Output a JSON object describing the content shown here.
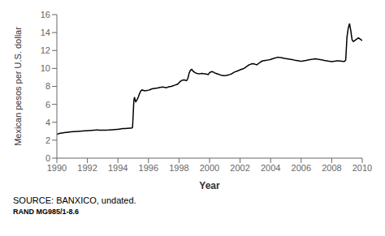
{
  "chart_data": {
    "type": "line",
    "xlabel": "Year",
    "ylabel": "Mexican pesos per U.S. dollar",
    "annotations": [
      "SOURCE: BANXICO, undated.",
      "RAND MG985/1-8.6"
    ],
    "color": "#000000",
    "grid": false,
    "xlim": [
      1990,
      2010
    ],
    "ylim": [
      0,
      16
    ],
    "yticks": [
      0,
      2,
      4,
      6,
      8,
      10,
      12,
      14,
      16
    ],
    "xticks": [
      1990,
      1992,
      1994,
      1996,
      1998,
      2000,
      2002,
      2004,
      2006,
      2008,
      2010
    ],
    "x": [
      1990.0,
      1990.083,
      1990.167,
      1990.25,
      1990.333,
      1990.417,
      1990.5,
      1990.583,
      1990.667,
      1990.75,
      1990.833,
      1990.917,
      1991.0,
      1991.083,
      1991.167,
      1991.25,
      1991.333,
      1991.417,
      1991.5,
      1991.583,
      1991.667,
      1991.75,
      1991.833,
      1991.917,
      1992.0,
      1992.083,
      1992.167,
      1992.25,
      1992.333,
      1992.417,
      1992.5,
      1992.583,
      1992.667,
      1992.75,
      1992.833,
      1992.917,
      1993.0,
      1993.083,
      1993.167,
      1993.25,
      1993.333,
      1993.417,
      1993.5,
      1993.583,
      1993.667,
      1993.75,
      1993.833,
      1993.917,
      1994.0,
      1994.083,
      1994.167,
      1994.25,
      1994.333,
      1994.417,
      1994.5,
      1994.583,
      1994.667,
      1994.75,
      1994.833,
      1994.917,
      1994.958,
      1995.0,
      1995.042,
      1995.083,
      1995.125,
      1995.167,
      1995.25,
      1995.333,
      1995.417,
      1995.5,
      1995.583,
      1995.667,
      1995.75,
      1995.833,
      1995.917,
      1996.0,
      1996.083,
      1996.167,
      1996.25,
      1996.333,
      1996.417,
      1996.5,
      1996.583,
      1996.667,
      1996.75,
      1996.833,
      1996.917,
      1997.0,
      1997.083,
      1997.167,
      1997.25,
      1997.333,
      1997.417,
      1997.5,
      1997.583,
      1997.667,
      1997.75,
      1997.833,
      1997.917,
      1998.0,
      1998.083,
      1998.167,
      1998.25,
      1998.333,
      1998.417,
      1998.5,
      1998.583,
      1998.667,
      1998.75,
      1998.833,
      1998.917,
      1999.0,
      1999.083,
      1999.167,
      1999.25,
      1999.333,
      1999.417,
      1999.5,
      1999.583,
      1999.667,
      1999.75,
      1999.833,
      1999.917,
      2000.0,
      2000.083,
      2000.167,
      2000.25,
      2000.333,
      2000.417,
      2000.5,
      2000.583,
      2000.667,
      2000.75,
      2000.833,
      2000.917,
      2001.0,
      2001.083,
      2001.167,
      2001.25,
      2001.333,
      2001.417,
      2001.5,
      2001.583,
      2001.667,
      2001.75,
      2001.833,
      2001.917,
      2002.0,
      2002.083,
      2002.167,
      2002.25,
      2002.333,
      2002.417,
      2002.5,
      2002.583,
      2002.667,
      2002.75,
      2002.833,
      2002.917,
      2003.0,
      2003.083,
      2003.167,
      2003.25,
      2003.333,
      2003.417,
      2003.5,
      2003.583,
      2003.667,
      2003.75,
      2003.833,
      2003.917,
      2004.0,
      2004.083,
      2004.167,
      2004.25,
      2004.333,
      2004.417,
      2004.5,
      2004.583,
      2004.667,
      2004.75,
      2004.833,
      2004.917,
      2005.0,
      2005.083,
      2005.167,
      2005.25,
      2005.333,
      2005.417,
      2005.5,
      2005.583,
      2005.667,
      2005.75,
      2005.833,
      2005.917,
      2006.0,
      2006.083,
      2006.167,
      2006.25,
      2006.333,
      2006.417,
      2006.5,
      2006.583,
      2006.667,
      2006.75,
      2006.833,
      2006.917,
      2007.0,
      2007.083,
      2007.167,
      2007.25,
      2007.333,
      2007.417,
      2007.5,
      2007.583,
      2007.667,
      2007.75,
      2007.833,
      2007.917,
      2008.0,
      2008.083,
      2008.167,
      2008.25,
      2008.333,
      2008.417,
      2008.5,
      2008.583,
      2008.667,
      2008.75,
      2008.833,
      2008.917,
      2009.0,
      2009.083,
      2009.167,
      2009.25,
      2009.333,
      2009.417,
      2009.5,
      2009.583,
      2009.667,
      2009.75,
      2009.833,
      2009.917,
      2010.0
    ],
    "values": [
      2.65,
      2.7,
      2.75,
      2.78,
      2.8,
      2.82,
      2.84,
      2.86,
      2.88,
      2.9,
      2.92,
      2.93,
      2.94,
      2.95,
      2.96,
      2.97,
      2.98,
      2.99,
      3.0,
      3.01,
      3.02,
      3.03,
      3.04,
      3.05,
      3.06,
      3.07,
      3.08,
      3.09,
      3.1,
      3.11,
      3.12,
      3.13,
      3.13,
      3.12,
      3.12,
      3.11,
      3.11,
      3.11,
      3.12,
      3.12,
      3.13,
      3.14,
      3.15,
      3.16,
      3.17,
      3.18,
      3.19,
      3.2,
      3.21,
      3.23,
      3.25,
      3.27,
      3.29,
      3.3,
      3.31,
      3.32,
      3.33,
      3.34,
      3.35,
      3.37,
      3.45,
      4.9,
      6.4,
      6.8,
      6.5,
      6.3,
      6.5,
      6.8,
      7.2,
      7.5,
      7.6,
      7.55,
      7.5,
      7.52,
      7.55,
      7.58,
      7.62,
      7.68,
      7.72,
      7.75,
      7.78,
      7.8,
      7.82,
      7.85,
      7.88,
      7.9,
      7.93,
      7.9,
      7.88,
      7.85,
      7.9,
      7.95,
      7.98,
      8.0,
      8.05,
      8.1,
      8.15,
      8.2,
      8.25,
      8.4,
      8.55,
      8.65,
      8.7,
      8.72,
      8.68,
      8.65,
      8.9,
      9.5,
      9.8,
      9.9,
      9.7,
      9.6,
      9.5,
      9.45,
      9.42,
      9.4,
      9.42,
      9.45,
      9.42,
      9.4,
      9.38,
      9.35,
      9.32,
      9.52,
      9.6,
      9.65,
      9.6,
      9.5,
      9.45,
      9.4,
      9.35,
      9.3,
      9.25,
      9.23,
      9.2,
      9.2,
      9.22,
      9.25,
      9.28,
      9.32,
      9.38,
      9.45,
      9.55,
      9.62,
      9.68,
      9.72,
      9.78,
      9.85,
      9.9,
      9.95,
      10.0,
      10.1,
      10.2,
      10.3,
      10.4,
      10.45,
      10.5,
      10.52,
      10.5,
      10.45,
      10.4,
      10.5,
      10.6,
      10.7,
      10.8,
      10.85,
      10.88,
      10.9,
      10.92,
      10.95,
      10.97,
      11.0,
      11.05,
      11.1,
      11.15,
      11.18,
      11.22,
      11.25,
      11.22,
      11.2,
      11.18,
      11.15,
      11.12,
      11.1,
      11.08,
      11.05,
      11.02,
      11.0,
      10.98,
      10.95,
      10.92,
      10.9,
      10.88,
      10.85,
      10.82,
      10.8,
      10.82,
      10.85,
      10.88,
      10.9,
      10.93,
      10.95,
      10.98,
      11.0,
      11.02,
      11.05,
      11.08,
      11.05,
      11.02,
      11.0,
      10.98,
      10.95,
      10.93,
      10.9,
      10.88,
      10.85,
      10.82,
      10.8,
      10.78,
      10.75,
      10.78,
      10.8,
      10.82,
      10.85,
      10.85,
      10.83,
      10.82,
      10.8,
      10.78,
      10.78,
      10.95,
      13.5,
      14.5,
      15.0,
      14.2,
      13.2,
      13.0,
      13.1,
      13.2,
      13.3,
      13.4,
      13.3,
      13.2,
      13.1
    ]
  }
}
